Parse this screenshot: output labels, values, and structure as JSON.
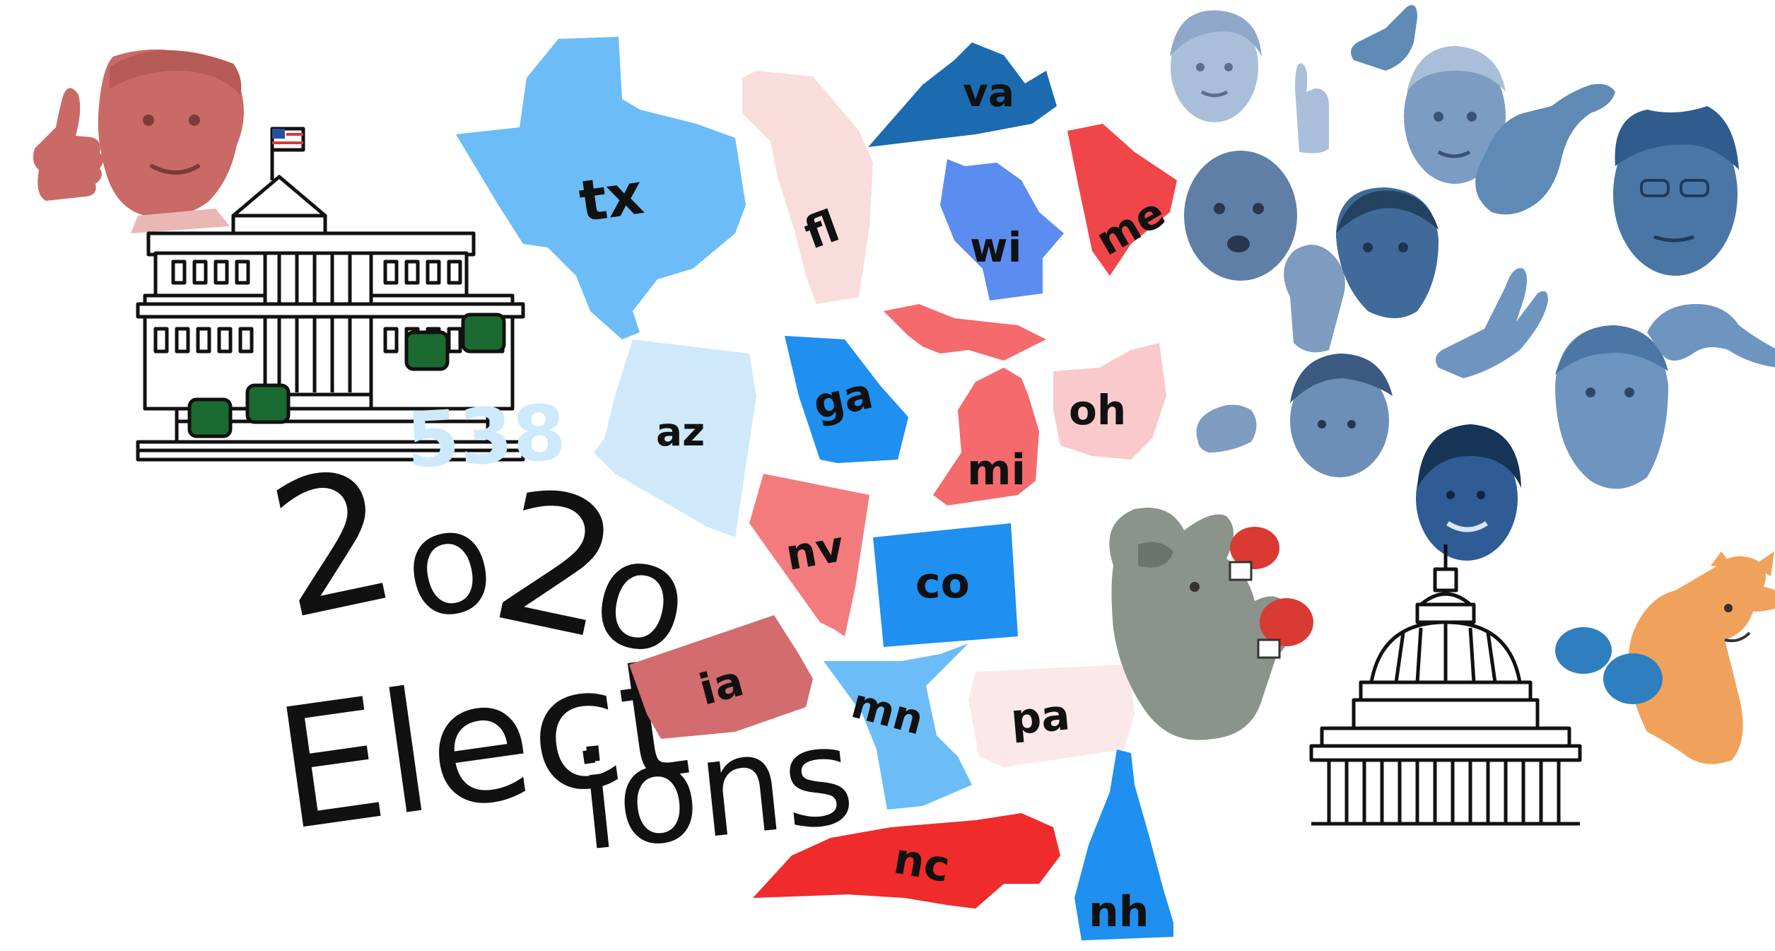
{
  "logo": {
    "text": "538",
    "color": "#cde9fb"
  },
  "title": {
    "year_chars": [
      "2",
      "o",
      "2",
      "o"
    ],
    "word_part1": "Elect",
    "word_dot": ".",
    "word_part2": "ions"
  },
  "colors": {
    "dem_blue": "#1f8ff0",
    "light_blue": "#6cbcf7",
    "pale_blue": "#cfe9fb",
    "red": "#f0464a",
    "salmon": "#f47b7d",
    "pale_pink": "#f9dcdc",
    "candidate_blue": "#4f86b8",
    "gop_gray": "#8a948a",
    "donkey_orange": "#f0a25c",
    "trump_red": "#c96a66"
  },
  "states": [
    {
      "label": "tx",
      "fill": "#6cbcf7"
    },
    {
      "label": "fl",
      "fill": "#f9dcdc"
    },
    {
      "label": "va",
      "fill": "#1c6bb0"
    },
    {
      "label": "wi",
      "fill": "#5b8cf0"
    },
    {
      "label": "me",
      "fill": "#f0464a"
    },
    {
      "label": "az",
      "fill": "#cfe9fb"
    },
    {
      "label": "ga",
      "fill": "#1f8ff0"
    },
    {
      "label": "mi",
      "fill": "#f46a6d"
    },
    {
      "label": "oh",
      "fill": "#f9c9cc"
    },
    {
      "label": "nv",
      "fill": "#f47b7d"
    },
    {
      "label": "co",
      "fill": "#1f8ff0"
    },
    {
      "label": "ia",
      "fill": "#d26c6e"
    },
    {
      "label": "mn",
      "fill": "#6cbcf7"
    },
    {
      "label": "pa",
      "fill": "#fbe8e8"
    },
    {
      "label": "nc",
      "fill": "#ef2b2b"
    },
    {
      "label": "nh",
      "fill": "#1f8ff0"
    }
  ],
  "illustrations": [
    {
      "name": "trump-figure",
      "icon": "person-thumbs-up-icon"
    },
    {
      "name": "white-house",
      "icon": "white-house-icon"
    },
    {
      "name": "us-flag",
      "icon": "flag-icon"
    },
    {
      "name": "candidate-faces",
      "icon": "person-face-icon"
    },
    {
      "name": "raised-hands",
      "icon": "hand-icon"
    },
    {
      "name": "gop-elephant-boxer",
      "icon": "elephant-boxing-icon"
    },
    {
      "name": "capitol-building",
      "icon": "capitol-dome-icon"
    },
    {
      "name": "dem-donkey-boxer",
      "icon": "donkey-boxing-icon"
    }
  ]
}
